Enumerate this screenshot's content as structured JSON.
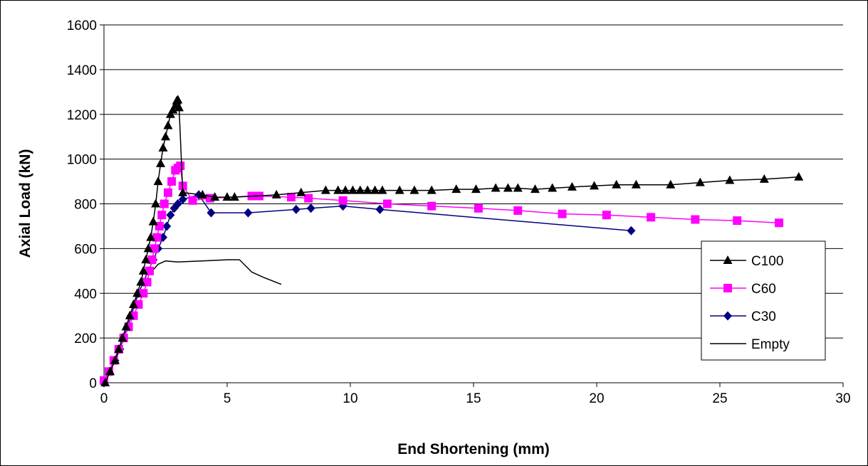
{
  "chart_data": {
    "type": "line",
    "title": "",
    "xlabel": "End Shortening (mm)",
    "ylabel": "Axial Load (kN)",
    "xlim": [
      0,
      30
    ],
    "ylim": [
      0,
      1600
    ],
    "xticks": [
      0,
      5,
      10,
      15,
      20,
      25,
      30
    ],
    "yticks": [
      0,
      200,
      400,
      600,
      800,
      1000,
      1200,
      1400,
      1600
    ],
    "grid": "horizontal",
    "legend": "right",
    "series": [
      {
        "name": "C100",
        "color": "#000000",
        "marker": "triangle",
        "x": [
          0.05,
          0.25,
          0.45,
          0.6,
          0.75,
          0.9,
          1.05,
          1.2,
          1.35,
          1.5,
          1.6,
          1.7,
          1.8,
          1.9,
          2.0,
          2.1,
          2.2,
          2.3,
          2.4,
          2.5,
          2.6,
          2.7,
          2.8,
          2.9,
          2.95,
          3.0,
          3.05,
          3.2,
          4.0,
          4.5,
          5.0,
          5.3,
          7.0,
          8.0,
          9.0,
          9.5,
          9.8,
          10.1,
          10.4,
          10.7,
          11.0,
          11.3,
          12.0,
          12.6,
          13.3,
          14.3,
          15.1,
          15.9,
          16.4,
          16.8,
          17.5,
          18.2,
          19.0,
          19.9,
          20.8,
          21.6,
          23.0,
          24.2,
          25.4,
          26.8,
          28.2
        ],
        "y": [
          0,
          50,
          100,
          150,
          200,
          250,
          300,
          350,
          400,
          450,
          500,
          550,
          600,
          650,
          720,
          800,
          900,
          980,
          1050,
          1100,
          1150,
          1200,
          1220,
          1240,
          1260,
          1265,
          1230,
          850,
          840,
          830,
          830,
          830,
          840,
          850,
          860,
          860,
          860,
          860,
          860,
          860,
          860,
          860,
          860,
          860,
          860,
          865,
          865,
          870,
          870,
          870,
          865,
          870,
          875,
          880,
          885,
          885,
          885,
          895,
          905,
          910,
          920
        ]
      },
      {
        "name": "C60",
        "color": "#ff00ff",
        "marker": "square",
        "x": [
          0.0,
          0.2,
          0.4,
          0.6,
          0.8,
          1.0,
          1.2,
          1.4,
          1.6,
          1.75,
          1.85,
          1.95,
          2.05,
          2.15,
          2.25,
          2.35,
          2.45,
          2.6,
          2.75,
          2.9,
          3.0,
          3.1,
          3.2,
          3.6,
          4.3,
          6.0,
          6.3,
          7.6,
          8.3,
          9.7,
          11.5,
          13.3,
          15.2,
          16.8,
          18.6,
          20.4,
          22.2,
          24.0,
          25.7,
          27.4
        ],
        "y": [
          10,
          50,
          100,
          150,
          200,
          250,
          300,
          350,
          400,
          450,
          500,
          550,
          600,
          650,
          700,
          750,
          800,
          850,
          900,
          950,
          960,
          970,
          880,
          815,
          825,
          835,
          835,
          830,
          825,
          815,
          800,
          790,
          780,
          770,
          755,
          750,
          740,
          730,
          725,
          715
        ]
      },
      {
        "name": "C30",
        "color": "#000080",
        "marker": "diamond",
        "x": [
          0.0,
          0.2,
          0.45,
          0.65,
          0.8,
          0.95,
          1.1,
          1.25,
          1.4,
          1.6,
          1.8,
          2.0,
          2.2,
          2.4,
          2.55,
          2.7,
          2.85,
          3.0,
          3.2,
          3.85,
          4.35,
          5.85,
          7.8,
          8.4,
          9.7,
          11.2,
          21.4
        ],
        "y": [
          0,
          50,
          100,
          150,
          200,
          250,
          300,
          350,
          400,
          450,
          500,
          550,
          600,
          650,
          700,
          750,
          780,
          800,
          820,
          840,
          760,
          760,
          775,
          780,
          790,
          775,
          680
        ]
      },
      {
        "name": "Empty",
        "color": "#000000",
        "marker": "none",
        "x": [
          2.0,
          2.2,
          2.5,
          3.0,
          4.0,
          5.0,
          5.5,
          6.0,
          6.5,
          7.2
        ],
        "y": [
          505,
          530,
          545,
          540,
          545,
          550,
          550,
          495,
          470,
          440
        ]
      }
    ]
  }
}
